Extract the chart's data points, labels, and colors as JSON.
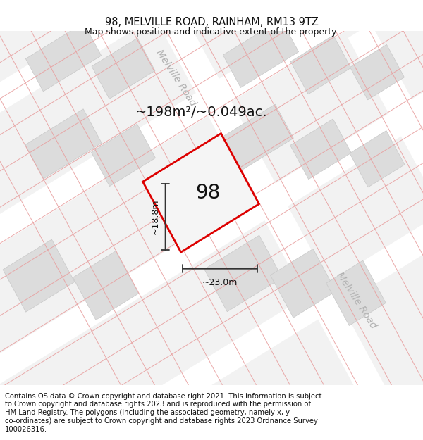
{
  "title": "98, MELVILLE ROAD, RAINHAM, RM13 9TZ",
  "subtitle": "Map shows position and indicative extent of the property.",
  "area_text": "~198m²/~0.049ac.",
  "number_label": "98",
  "width_label": "~23.0m",
  "height_label": "~18.8m",
  "footer_lines": [
    "Contains OS data © Crown copyright and database right 2021. This information is subject",
    "to Crown copyright and database rights 2023 and is reproduced with the permission of",
    "HM Land Registry. The polygons (including the associated geometry, namely x, y",
    "co-ordinates) are subject to Crown copyright and database rights 2023 Ordnance Survey",
    "100026316."
  ],
  "map_bg": "#f2f2f2",
  "road_color": "#ffffff",
  "block_color": "#dcdcdc",
  "block_edge": "#c8c8c8",
  "pink_line_color": "#e8a0a0",
  "red_outline_color": "#dd0000",
  "property_fill": "#f5f5f5",
  "dim_line_color": "#333333",
  "title_fontsize": 10.5,
  "subtitle_fontsize": 9,
  "area_fontsize": 14,
  "number_fontsize": 20,
  "footer_fontsize": 7.2,
  "road_label_color": "#b0b0b0",
  "road_label_fontsize": 10,
  "dim_fontsize": 9
}
